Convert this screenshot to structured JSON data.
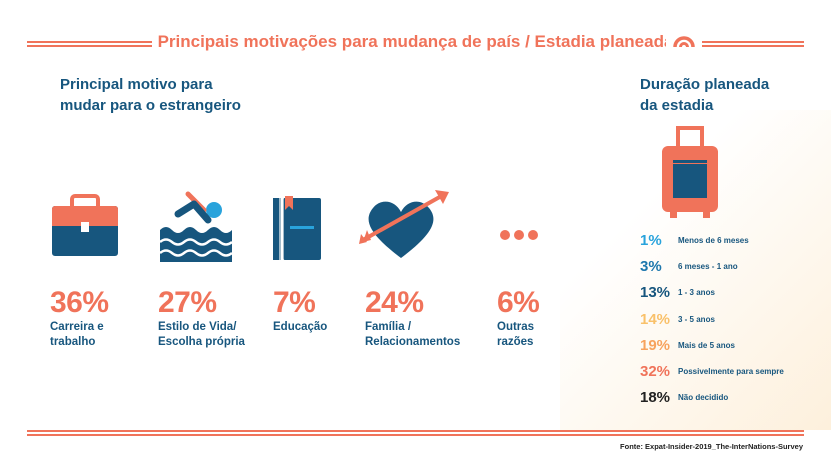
{
  "header": {
    "title": "Principais motivações para mudança de país / Estadia planeada",
    "icon": "target-arc-icon"
  },
  "motives_section": {
    "title_line1": "Principal motivo para",
    "title_line2": "mudar para o estrangeiro",
    "items": [
      {
        "percent": "36%",
        "label_line1": "Carreira e",
        "label_line2": "trabalho",
        "icon": "briefcase-icon"
      },
      {
        "percent": "27%",
        "label_line1": "Estilo de Vida/",
        "label_line2": "Escolha própria",
        "icon": "swimmer-icon"
      },
      {
        "percent": "7%",
        "label_line1": "Educação",
        "label_line2": "",
        "icon": "book-icon"
      },
      {
        "percent": "24%",
        "label_line1": "Família /",
        "label_line2": "Relacionamentos",
        "icon": "heart-arrow-icon"
      },
      {
        "percent": "6%",
        "label_line1": "Outras",
        "label_line2": "razões",
        "icon": "ellipsis-icon"
      }
    ]
  },
  "duration_section": {
    "title_line1": "Duração planeada",
    "title_line2": "da estadia",
    "icon": "suitcase-icon",
    "rows": [
      {
        "percent": "1%",
        "label": "Menos de 6 meses",
        "color": "#29a3dc"
      },
      {
        "percent": "3%",
        "label": "6 meses - 1 ano",
        "color": "#1d77ad"
      },
      {
        "percent": "13%",
        "label": "1 - 3 anos",
        "color": "#17567e"
      },
      {
        "percent": "14%",
        "label": "3 - 5 anos",
        "color": "#f9c16a"
      },
      {
        "percent": "19%",
        "label": "Mais de 5 anos",
        "color": "#f7a35e"
      },
      {
        "percent": "32%",
        "label": "Possivelmente para sempre",
        "color": "#f0735a"
      },
      {
        "percent": "18%",
        "label": "Não decidido",
        "color": "#222222"
      }
    ]
  },
  "footer": {
    "source": "Fonte: Expat-Insider-2019_The-InterNations-Survey"
  },
  "colors": {
    "accent": "#f0735a",
    "navy": "#17567e"
  }
}
